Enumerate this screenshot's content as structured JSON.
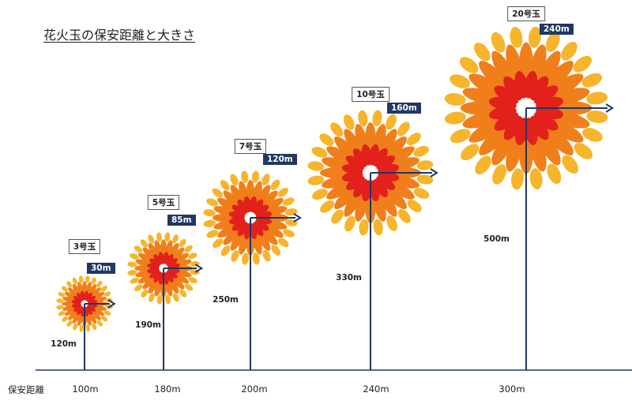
{
  "title": "花火玉の保安距離と大きさ",
  "axis_label": "保安距離",
  "colors": {
    "line": "#1f3864",
    "badge": "#1f3864",
    "red": "#e2211c",
    "orange": "#f07f1b",
    "yellow": "#f7b52c"
  },
  "shells": [
    {
      "label": "3号玉",
      "radius": "30m",
      "height": "120m",
      "distance": "100m"
    },
    {
      "label": "5号玉",
      "radius": "85m",
      "height": "190m",
      "distance": "180m"
    },
    {
      "label": "7号玉",
      "radius": "120m",
      "height": "250m",
      "distance": "200m"
    },
    {
      "label": "10号玉",
      "radius": "160m",
      "height": "330m",
      "distance": "240m"
    },
    {
      "label": "20号玉",
      "radius": "240m",
      "height": "500m",
      "distance": "300m"
    }
  ]
}
